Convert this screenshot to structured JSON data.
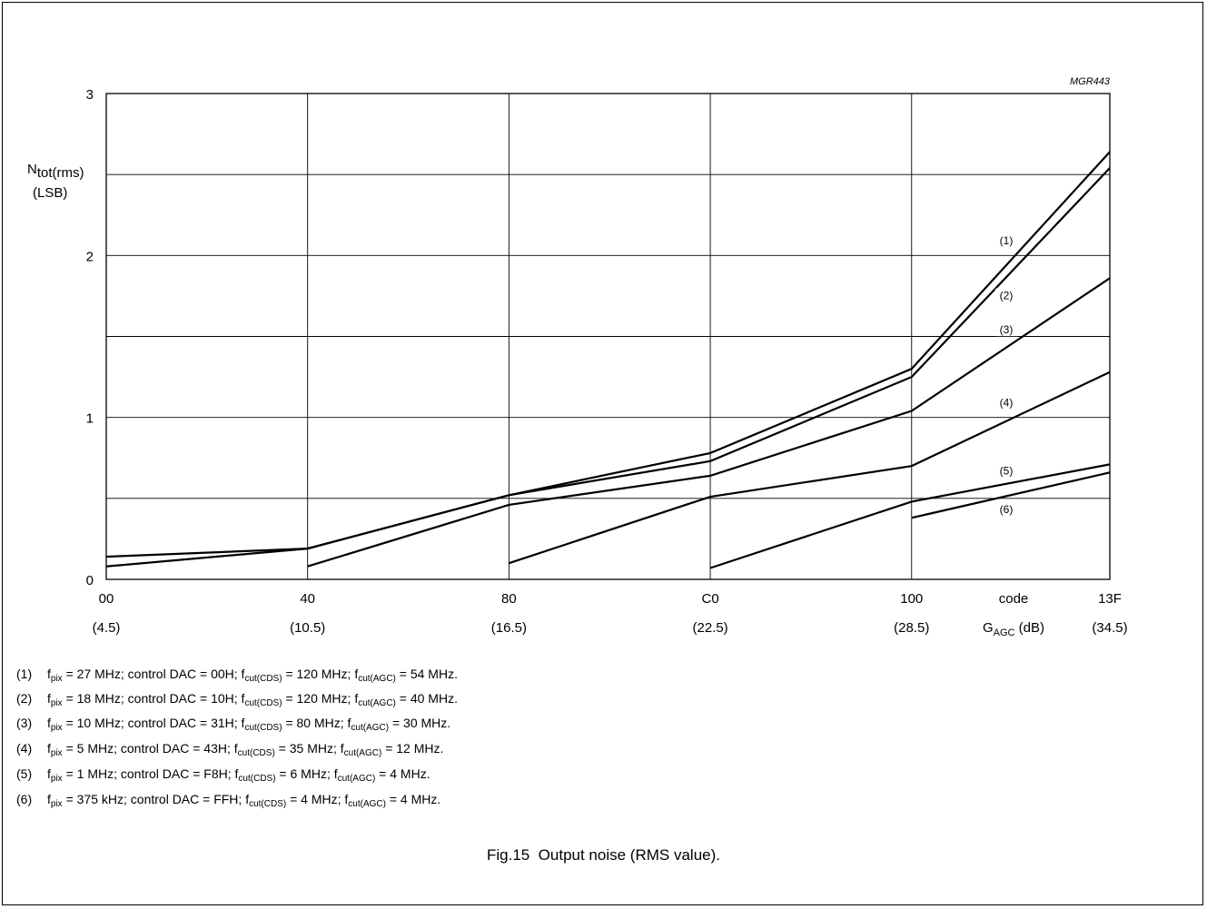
{
  "chart_data": {
    "type": "line",
    "tag": "MGR443",
    "ylabel": {
      "main": "N",
      "sub": "tot(rms)",
      "unit": "(LSB)"
    },
    "ylim": [
      0,
      3
    ],
    "y_ticks": [
      0,
      1,
      2,
      3
    ],
    "y_gridlines": [
      0.5,
      1,
      1.5,
      2,
      2.5,
      3
    ],
    "x_ticks": [
      {
        "code": "00",
        "gain": "(4.5)"
      },
      {
        "code": "40",
        "gain": "(10.5)"
      },
      {
        "code": "80",
        "gain": "(16.5)"
      },
      {
        "code": "C0",
        "gain": "(22.5)"
      },
      {
        "code": "100",
        "gain": "(28.5)"
      },
      {
        "code": "13F",
        "gain": "(34.5)"
      }
    ],
    "x_code_positions": [
      0,
      64,
      128,
      192,
      256,
      319
    ],
    "xlabel_code": "code",
    "xlabel_gain": {
      "main": "G",
      "sub": "AGC",
      "unit": " (dB)"
    },
    "series": [
      {
        "name": "(1)",
        "x": [
          0,
          64,
          128,
          192,
          256,
          319
        ],
        "y": [
          0.14,
          0.19,
          0.52,
          0.78,
          1.3,
          2.64
        ]
      },
      {
        "name": "(2)",
        "x": [
          0,
          64,
          128,
          192,
          256,
          319
        ],
        "y": [
          0.08,
          0.19,
          0.52,
          0.73,
          1.25,
          2.54
        ]
      },
      {
        "name": "(3)",
        "x": [
          64,
          128,
          192,
          256,
          319
        ],
        "y": [
          0.08,
          0.46,
          0.64,
          1.04,
          1.86
        ]
      },
      {
        "name": "(4)",
        "x": [
          128,
          192,
          256,
          319
        ],
        "y": [
          0.1,
          0.51,
          0.7,
          1.28
        ]
      },
      {
        "name": "(5)",
        "x": [
          192,
          256,
          319
        ],
        "y": [
          0.07,
          0.48,
          0.71
        ]
      },
      {
        "name": "(6)",
        "x": [
          256,
          319
        ],
        "y": [
          0.38,
          0.66
        ]
      }
    ],
    "series_labels": [
      {
        "text": "(1)",
        "y": 2.08
      },
      {
        "text": "(2)",
        "y": 1.74
      },
      {
        "text": "(3)",
        "y": 1.53
      },
      {
        "text": "(4)",
        "y": 1.08
      },
      {
        "text": "(5)",
        "y": 0.66
      },
      {
        "text": "(6)",
        "y": 0.42
      }
    ]
  },
  "notes": [
    {
      "num": "(1)",
      "fpix": "27 MHz",
      "dac": "00H",
      "fcds": "120 MHz",
      "fagc": "54 MHz."
    },
    {
      "num": "(2)",
      "fpix": "18 MHz",
      "dac": "10H",
      "fcds": "120 MHz",
      "fagc": "40 MHz."
    },
    {
      "num": "(3)",
      "fpix": "10 MHz",
      "dac": "31H",
      "fcds": "80 MHz",
      "fagc": "30 MHz."
    },
    {
      "num": "(4)",
      "fpix": "5 MHz",
      "dac": "43H",
      "fcds": "35 MHz",
      "fagc": "12 MHz."
    },
    {
      "num": "(5)",
      "fpix": "1 MHz",
      "dac": "F8H",
      "fcds": "6 MHz",
      "fagc": "4 MHz."
    },
    {
      "num": "(6)",
      "fpix": "375 kHz",
      "dac": "FFH",
      "fcds": "4 MHz",
      "fagc": "4 MHz."
    }
  ],
  "note_text": {
    "f": "f",
    "pix_sub": "pix",
    "dac_prefix": " = ",
    "dac_label": "; control DAC = ",
    "cds_label": "; f",
    "cds_sub": "cut(CDS)",
    "agc_label": "; f",
    "agc_sub": "cut(AGC)",
    "eq": " = "
  },
  "caption": "Fig.15  Output noise (RMS value)."
}
